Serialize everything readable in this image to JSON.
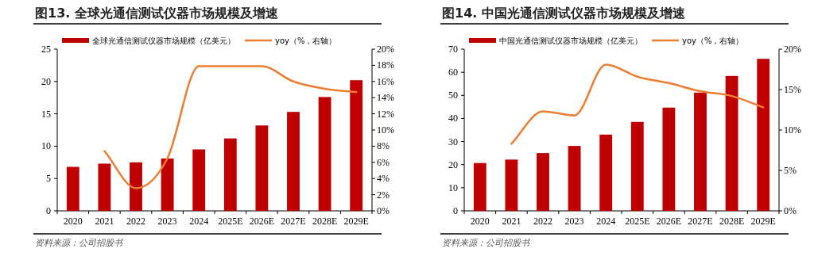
{
  "chart_data": [
    {
      "type": "bar",
      "title": "图13. 全球光通信测试仪器市场规模及增速",
      "categories": [
        "2020",
        "2021",
        "2022",
        "2023",
        "2024",
        "2025E",
        "2026E",
        "2027E",
        "2028E",
        "2029E"
      ],
      "series": [
        {
          "name": "全球光通信测试仪器市场规模（亿美元）",
          "color": "#c00000",
          "values": [
            6.8,
            7.3,
            7.5,
            8.1,
            9.5,
            11.2,
            13.2,
            15.3,
            17.6,
            20.2
          ]
        },
        {
          "name": "yoy（%，右轴）",
          "type": "line",
          "axis": "y2",
          "color": "#ed7d31",
          "values": [
            null,
            7.4,
            2.8,
            6.5,
            17.9,
            17.9,
            17.9,
            16.0,
            15.1,
            14.7
          ]
        }
      ],
      "ylim": [
        0,
        25
      ],
      "yticks": [
        0,
        5,
        10,
        15,
        20,
        25
      ],
      "y2lim": [
        0,
        20
      ],
      "y2ticks": [
        {
          "value": 0,
          "label": "0%"
        },
        {
          "value": 2,
          "label": "2%"
        },
        {
          "value": 4,
          "label": "4%"
        },
        {
          "value": 6,
          "label": "6%"
        },
        {
          "value": 8,
          "label": "8%"
        },
        {
          "value": 10,
          "label": "10%"
        },
        {
          "value": 12,
          "label": "12%"
        },
        {
          "value": 14,
          "label": "14%"
        },
        {
          "value": 16,
          "label": "16%"
        },
        {
          "value": 18,
          "label": "18%"
        },
        {
          "value": 20,
          "label": "20%"
        }
      ],
      "legend": "top",
      "marker": "none",
      "line_style": "solid",
      "annotations": [
        "资料来源：公司招股书"
      ]
    },
    {
      "type": "bar",
      "title": "图14. 中国光通信测试仪器市场规模及增速",
      "categories": [
        "2020",
        "2021",
        "2022",
        "2023",
        "2024",
        "2025E",
        "2026E",
        "2027E",
        "2028E",
        "2029E"
      ],
      "series": [
        {
          "name": "中国光通信测试仪器市场规模（亿美元）",
          "color": "#c00000",
          "values": [
            20.7,
            22.2,
            25.0,
            28.1,
            33.0,
            38.5,
            44.7,
            51.2,
            58.4,
            65.8
          ]
        },
        {
          "name": "yoy（%，右轴）",
          "type": "line",
          "axis": "y2",
          "color": "#ed7d31",
          "values": [
            null,
            8.3,
            12.3,
            11.8,
            18.1,
            16.6,
            15.8,
            14.8,
            14.2,
            12.8
          ]
        }
      ],
      "ylim": [
        0,
        70
      ],
      "yticks": [
        0,
        10,
        20,
        30,
        40,
        50,
        60,
        70
      ],
      "y2lim": [
        0,
        20
      ],
      "y2ticks": [
        {
          "value": 0,
          "label": "0%"
        },
        {
          "value": 5,
          "label": "5%"
        },
        {
          "value": 10,
          "label": "10%"
        },
        {
          "value": 15,
          "label": "15%"
        },
        {
          "value": 20,
          "label": "20%"
        }
      ],
      "legend": "top",
      "marker": "none",
      "line_style": "solid",
      "annotations": [
        "资料来源：公司招股书"
      ]
    }
  ]
}
